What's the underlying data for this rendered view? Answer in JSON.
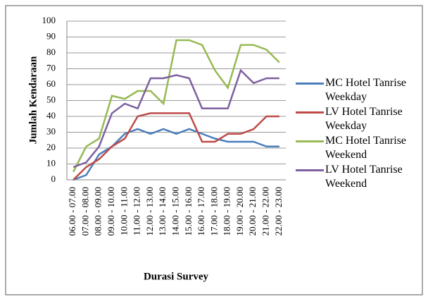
{
  "chart_data": {
    "type": "line",
    "y_label": "Jumlah Kendaraan",
    "x_label": "Durasi Survey",
    "categories": [
      "06.00 - 07.00",
      "07.00 - 08.00",
      "08.00 - 09.00",
      "09.00 - 10.00",
      "10.00 - 11.00",
      "11.00 - 12.00",
      "12.00 - 13.00",
      "13.00 - 14.00",
      "14.00 - 15.00",
      "15.00 - 16.00",
      "16.00 - 17.00",
      "17.00 - 18.00",
      "18.00 - 19.00",
      "19.00 - 20.00",
      "20.00 - 21.00",
      "21.00 - 22.00",
      "22.00 - 23.00"
    ],
    "series": [
      {
        "name": "MC Hotel Tanrise Weekday",
        "color": "#4a7ebb",
        "values": [
          0,
          3,
          16,
          21,
          29,
          32,
          29,
          32,
          29,
          32,
          29,
          26,
          24,
          24,
          24,
          21,
          21
        ]
      },
      {
        "name": "LV Hotel Tanrise Weekday",
        "color": "#be4b48",
        "values": [
          0,
          8,
          13,
          21,
          26,
          40,
          42,
          42,
          42,
          42,
          24,
          24,
          29,
          29,
          32,
          40,
          40
        ]
      },
      {
        "name": "MC Hotel Tanrise Weekend",
        "color": "#98b954",
        "values": [
          5,
          21,
          26,
          53,
          51,
          56,
          56,
          48,
          88,
          88,
          85,
          69,
          58,
          85,
          85,
          82,
          74
        ]
      },
      {
        "name": "LV Hotel Tanrise Weekend",
        "color": "#7d60a0",
        "values": [
          8,
          11,
          21,
          42,
          48,
          45,
          64,
          64,
          66,
          64,
          45,
          45,
          45,
          69,
          61,
          64,
          64
        ]
      }
    ],
    "ylim": [
      0,
      100
    ],
    "yticks": [
      0,
      10,
      20,
      30,
      40,
      50,
      60,
      70,
      80,
      90,
      100
    ],
    "grid": true,
    "legend": "right"
  }
}
